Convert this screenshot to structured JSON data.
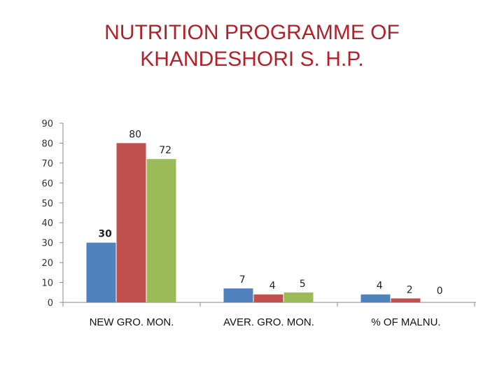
{
  "chart_data": {
    "type": "bar",
    "title": [
      "NUTRITION PROGRAMME OF",
      "KHANDESHORI S. H.P."
    ],
    "categories": [
      "NEW GRO. MON.",
      "AVER. GRO. MON.",
      "% OF MALNU."
    ],
    "series": [
      {
        "color": "#4f81bd",
        "values": [
          30,
          7,
          4
        ]
      },
      {
        "color": "#c0504d",
        "values": [
          80,
          4,
          2
        ]
      },
      {
        "color": "#9bbb59",
        "values": [
          72,
          5,
          0
        ]
      }
    ],
    "data_labels": [
      [
        "30",
        "7",
        "4"
      ],
      [
        "80",
        "4",
        "2"
      ],
      [
        "72",
        "5",
        "0"
      ]
    ],
    "yticks": [
      "0",
      "10",
      "20",
      "30",
      "40",
      "50",
      "60",
      "70",
      "80",
      "90"
    ],
    "ylim": [
      0,
      90
    ],
    "grid": false,
    "legend": "none"
  }
}
